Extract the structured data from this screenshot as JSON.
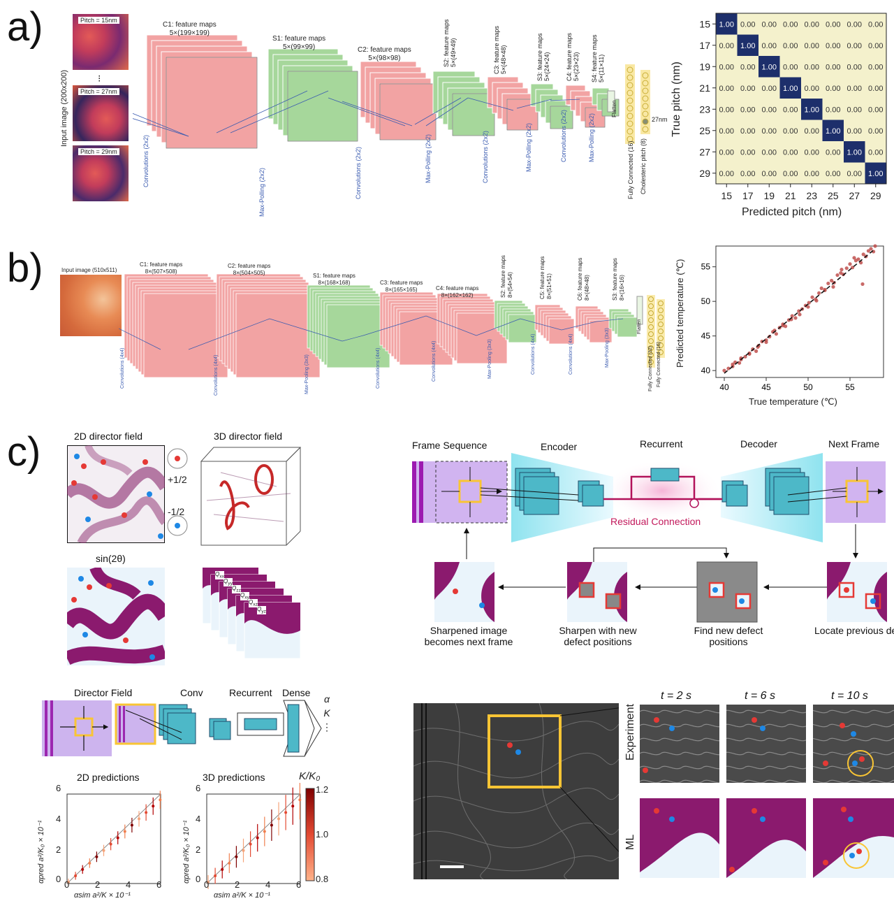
{
  "panels": {
    "a": "a)",
    "b": "b)",
    "c": "c)"
  },
  "a": {
    "input_label": "Input image (200x200)",
    "pitch_labels": [
      "Pitch = 15nm",
      "Pitch = 27nm",
      "Pitch = 29nm"
    ],
    "stacks": [
      {
        "title": "C1: feature maps",
        "dims": "5×(199×199)"
      },
      {
        "title": "S1: feature maps",
        "dims": "5×(99×99)"
      },
      {
        "title": "C2: feature maps",
        "dims": "5×(98×98)"
      },
      {
        "title": "S2: feature maps",
        "dims": "5×(49×49)"
      },
      {
        "title": "C3: feature maps",
        "dims": "5×(48×48)"
      },
      {
        "title": "S3: feature maps",
        "dims": "5×(24×24)"
      },
      {
        "title": "C4: feature maps",
        "dims": "5×(23×23)"
      },
      {
        "title": "S4: feature maps",
        "dims": "5×(11×11)"
      }
    ],
    "ops": [
      "Convolutions (2x2)",
      "Max-Polling (2x2)",
      "Convolutions (2x2)",
      "Max-Polling (2x2)",
      "Convolutions (2x2)",
      "Max-Polling (2x2)",
      "Convolutions (2x2)",
      "Max-Polling (2x2)"
    ],
    "flatten": "Flatten",
    "fc": "Fully Connected (16)",
    "output": "Cholesteric pitch (8)",
    "output_value": "27nm",
    "confusion": {
      "ylabel": "True pitch (nm)",
      "xlabel": "Predicted pitch (nm)",
      "classes": [
        "15",
        "17",
        "19",
        "21",
        "23",
        "25",
        "27",
        "29"
      ],
      "diag": "1.00",
      "off": "0.00",
      "cell_color": "#f4f1cc",
      "diag_color": "#1d2f6b"
    }
  },
  "b": {
    "input_label": "Input image (510x511)",
    "stacks": [
      {
        "title": "C1: feature maps",
        "dims": "8×(507×508)"
      },
      {
        "title": "C2: feature maps",
        "dims": "8×(504×505)"
      },
      {
        "title": "S1: feature maps",
        "dims": "8×(168×168)"
      },
      {
        "title": "C3: feature maps",
        "dims": "8×(165×165)"
      },
      {
        "title": "C4: feature maps",
        "dims": "8×(162×162)"
      },
      {
        "title": "S2: feature maps",
        "dims": "8×(54×54)"
      },
      {
        "title": "C5: feature maps",
        "dims": "8×(51×51)"
      },
      {
        "title": "C6: feature maps",
        "dims": "8×(48×48)"
      },
      {
        "title": "S3: feature maps",
        "dims": "8×(16×16)"
      }
    ],
    "ops": [
      "Convolutions (4x4)",
      "Convolutions (4x4)",
      "Max-Pooling (3x3)",
      "Convolutions (4x4)",
      "Convolutions (4x4)",
      "Max-Pooling (3x3)",
      "Convolutions (4x4)",
      "Convolutions (4x4)",
      "Max-Pooling (3x3)"
    ],
    "flatten": "Flatten",
    "fc1": "Fully Connected (32)",
    "fc2": "Fully Connected (16)"
  },
  "chart_data": {
    "type": "scatter",
    "xlabel": "True temperature (℃)",
    "ylabel": "Predicted temperature (℃)",
    "xlim": [
      39,
      59
    ],
    "ylim": [
      39,
      58
    ],
    "xticks": [
      40,
      45,
      50,
      55
    ],
    "yticks": [
      40,
      45,
      50,
      55
    ],
    "point_color": "#c0504d",
    "x": [
      40,
      40.5,
      41,
      41.3,
      41.8,
      42,
      42.5,
      43,
      43.4,
      43.8,
      44.1,
      44.5,
      45,
      45.4,
      45.8,
      46.2,
      46.6,
      47,
      47.3,
      47.7,
      48.1,
      48.5,
      48.9,
      49.3,
      49.7,
      50.1,
      50.5,
      50.9,
      51.3,
      51.6,
      52,
      52.4,
      52.8,
      53.1,
      53.5,
      53.9,
      54.2,
      54.6,
      55,
      55.3,
      55.7,
      56,
      56.3,
      56.6,
      56.9,
      57.2,
      57.5,
      57.8,
      58,
      56.5,
      55.5,
      54,
      53,
      52,
      51,
      50,
      49,
      48,
      47,
      46,
      45,
      44,
      43,
      42,
      41
    ],
    "y": [
      40,
      40.3,
      40.6,
      41.2,
      41.1,
      41.8,
      42,
      42.4,
      43.1,
      42.8,
      43.6,
      44.2,
      44.4,
      44.9,
      45.6,
      45.3,
      46.2,
      46.7,
      46.4,
      47.3,
      47.9,
      47.6,
      48.6,
      48.9,
      49.4,
      49.8,
      50.6,
      50.3,
      51.2,
      51.9,
      51.6,
      52.6,
      53,
      52.7,
      53.8,
      54.1,
      53.9,
      54.8,
      55.4,
      54.9,
      55.9,
      56.1,
      55.6,
      56.8,
      56.5,
      57.3,
      57.6,
      57.2,
      58,
      52.5,
      56.3,
      54.6,
      52.1,
      51.7,
      50.1,
      49.2,
      48.1,
      47.4,
      46.5,
      45.8,
      44.1,
      43.4,
      42.5,
      41.6,
      40.9
    ],
    "fit": {
      "x": [
        40,
        58
      ],
      "y": [
        39.6,
        57.6
      ]
    }
  },
  "c": {
    "df2d": "2D director field",
    "df3d": "3D director field",
    "plus": "+1/2",
    "minus": "-1/2",
    "sin": "sin(2θ)",
    "q": [
      "Q",
      "Q",
      "Q",
      "Q",
      "Q",
      "Q"
    ],
    "qsub": [
      "xx",
      "yy",
      "zz",
      "xy",
      "xz",
      "yz"
    ],
    "net_small": {
      "df": "Director Field",
      "conv": "Conv",
      "rec": "Recurrent",
      "dense": "Dense",
      "alpha": "α",
      "k": "K",
      "dots": "⋮"
    },
    "pred2d": "2D predictions",
    "pred3d": "3D predictions",
    "cbar_title": "K/K₀",
    "cbar_ticks": [
      "1.2",
      "1.0",
      "0.8"
    ],
    "ax_yticks": [
      "6",
      "4",
      "2",
      "0"
    ],
    "ax_xticks": [
      "0",
      "2",
      "4",
      "6"
    ],
    "ax_ylabel": "αpred a²/K₀ × 10⁻¹",
    "ax_xlabel": "αsim a²/K × 10⁻¹",
    "flow": {
      "frames": "Frame Sequence",
      "enc": "Encoder",
      "rec": "Recurrent",
      "dec": "Decoder",
      "next": "Next Frame",
      "residual": "Residual Connection"
    },
    "steps": [
      "Sharpened image becomes next frame",
      "Sharpen with new defect positions",
      "Find new defect positions",
      "Locate previous defect positions"
    ],
    "times": [
      "t = 2 s",
      "t = 6 s",
      "t = 10 s"
    ],
    "row_exp": "Experiment",
    "row_ml": "ML"
  }
}
